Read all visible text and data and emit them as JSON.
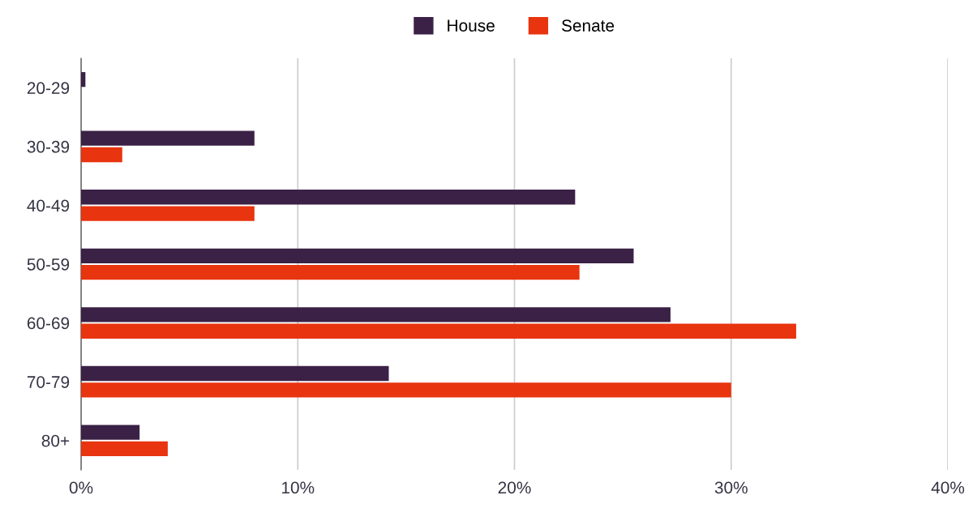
{
  "chart_data": {
    "type": "bar",
    "orientation": "horizontal",
    "categories": [
      "20-29",
      "30-39",
      "40-49",
      "50-59",
      "60-69",
      "70-79",
      "80+"
    ],
    "series": [
      {
        "name": "House",
        "color": "#3b2146",
        "values": [
          0.2,
          8.0,
          22.8,
          25.5,
          27.2,
          14.2,
          2.7
        ]
      },
      {
        "name": "Senate",
        "color": "#e8340f",
        "values": [
          0,
          1.9,
          8.0,
          23.0,
          33.0,
          30.0,
          4.0
        ]
      }
    ],
    "xlim": [
      0,
      40
    ],
    "xticks": [
      {
        "value": 0,
        "label": "0%"
      },
      {
        "value": 10,
        "label": "10%"
      },
      {
        "value": 20,
        "label": "20%"
      },
      {
        "value": 30,
        "label": "30%"
      },
      {
        "value": 40,
        "label": "40%"
      }
    ],
    "grid": "x",
    "legend": "top"
  }
}
